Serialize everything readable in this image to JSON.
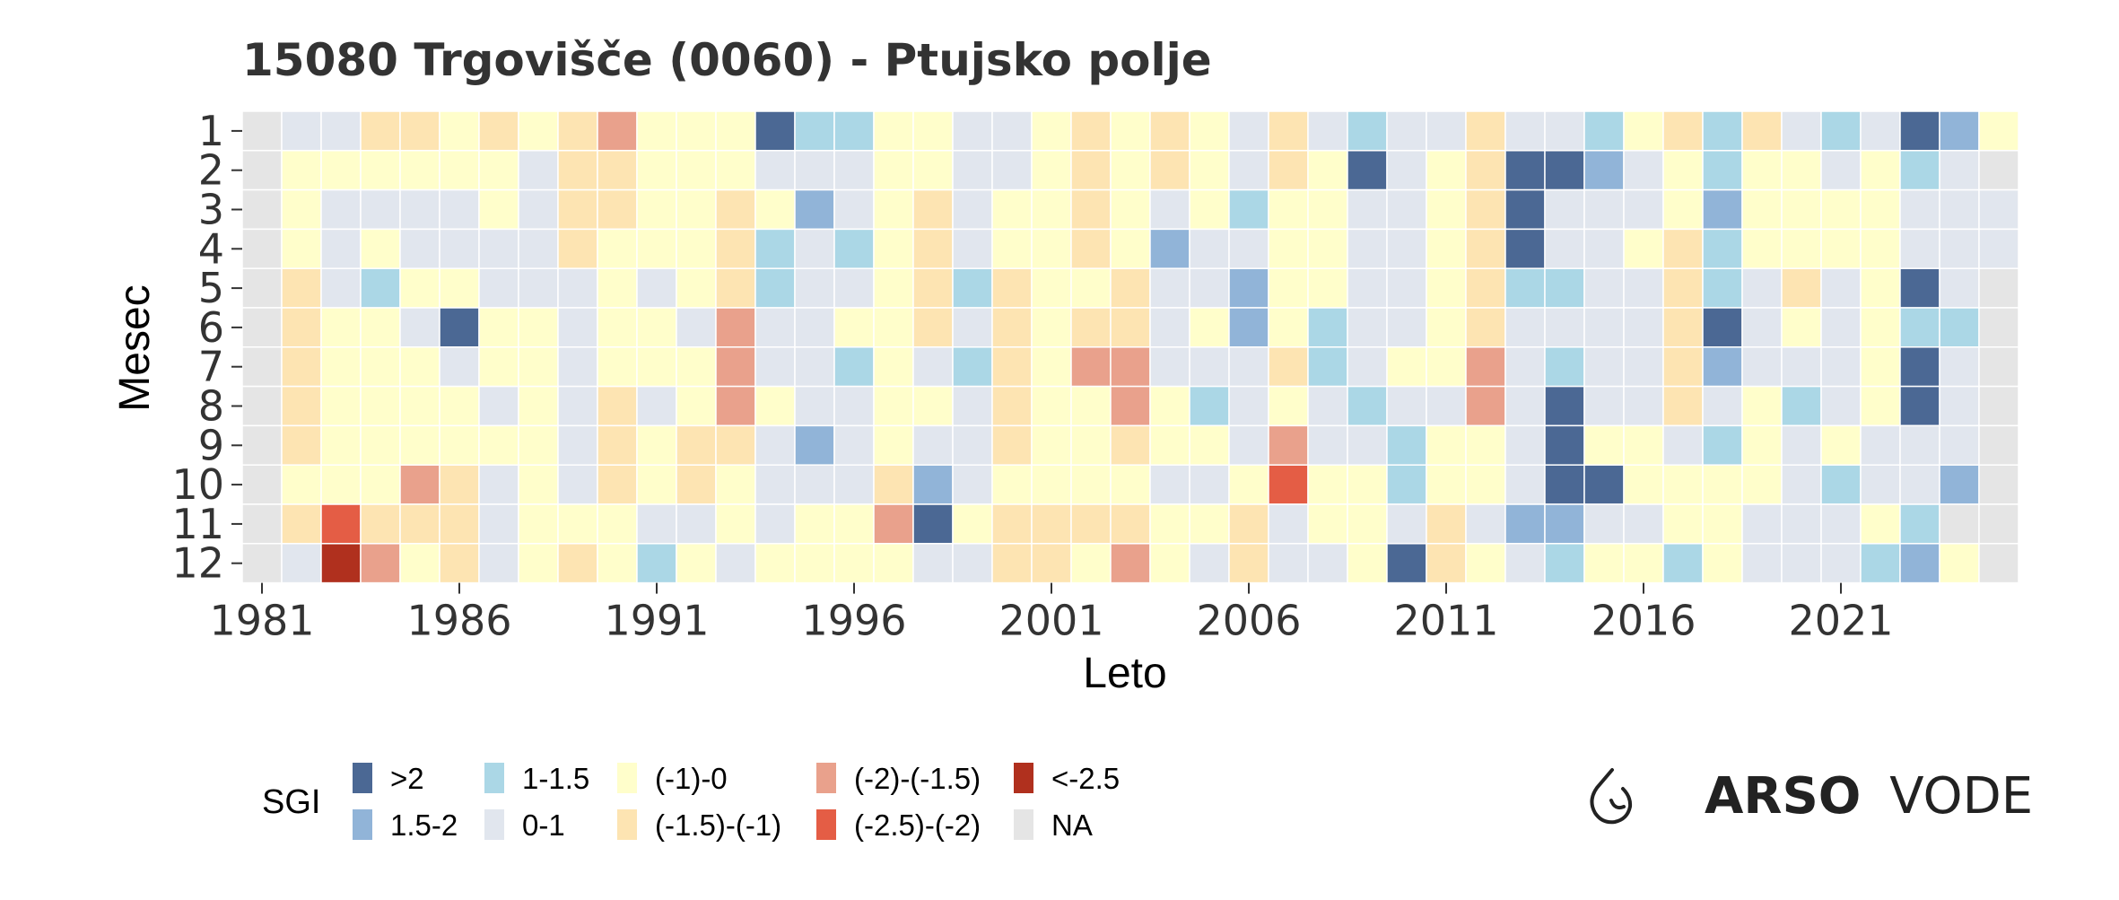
{
  "chart_data": {
    "type": "heatmap",
    "title": "15080 Trgovišče (0060) - Ptujsko polje",
    "xlabel": "Leto",
    "ylabel": "Mesec",
    "x_range": [
      1981,
      2025
    ],
    "y_categories": [
      "1",
      "2",
      "3",
      "4",
      "5",
      "6",
      "7",
      "8",
      "9",
      "10",
      "11",
      "12"
    ],
    "x_ticks": [
      "1981",
      "1986",
      "1991",
      "1996",
      "2001",
      "2006",
      "2011",
      "2016",
      "2021"
    ],
    "legend": {
      "title": "SGI",
      "entries": [
        {
          "code": "p2",
          "label": ">2",
          "color": "#4B6894"
        },
        {
          "code": "p15",
          "label": "1.5-2",
          "color": "#91B4D8"
        },
        {
          "code": "p1",
          "label": "1-1.5",
          "color": "#ABD7E6"
        },
        {
          "code": "z",
          "label": "0-1",
          "color": "#E1E6EE"
        },
        {
          "code": "m0",
          "label": "(-1)-0",
          "color": "#FFFECB"
        },
        {
          "code": "m1",
          "label": "(-1.5)-(-1)",
          "color": "#FDE4B2"
        },
        {
          "code": "m15",
          "label": "(-2)-(-1.5)",
          "color": "#E9A18C"
        },
        {
          "code": "m2",
          "label": "(-2.5)-(-2)",
          "color": "#E45D45"
        },
        {
          "code": "m25",
          "label": "<-2.5",
          "color": "#B0301E"
        },
        {
          "code": "na",
          "label": "NA",
          "color": "#E5E5E5"
        }
      ]
    },
    "values": [
      [
        "na",
        "z",
        "z",
        "m1",
        "m1",
        "m0",
        "m1",
        "m0",
        "m1",
        "m15",
        "m0",
        "m0",
        "m0",
        "p2",
        "p1",
        "p1",
        "m0",
        "m0",
        "z",
        "z",
        "m0",
        "m1",
        "m0",
        "m1",
        "m0",
        "z",
        "m1",
        "z",
        "p1",
        "z",
        "z",
        "m1",
        "z",
        "z",
        "p1",
        "m0",
        "m1",
        "p1",
        "m1",
        "z",
        "p1",
        "z",
        "p2",
        "p15",
        "m0"
      ],
      [
        "na",
        "m0",
        "m0",
        "m0",
        "m0",
        "m0",
        "m0",
        "z",
        "m1",
        "m1",
        "m0",
        "m0",
        "m0",
        "z",
        "z",
        "z",
        "m0",
        "m0",
        "z",
        "z",
        "m0",
        "m1",
        "m0",
        "m1",
        "m0",
        "z",
        "m1",
        "m0",
        "p2",
        "z",
        "m0",
        "m1",
        "p2",
        "p2",
        "p15",
        "z",
        "m0",
        "p1",
        "m0",
        "m0",
        "z",
        "m0",
        "p1",
        "z",
        "na"
      ],
      [
        "na",
        "m0",
        "z",
        "z",
        "z",
        "z",
        "m0",
        "z",
        "m1",
        "m1",
        "m0",
        "m0",
        "m1",
        "m0",
        "p15",
        "z",
        "m0",
        "m1",
        "z",
        "m0",
        "m0",
        "m1",
        "m0",
        "z",
        "m0",
        "p1",
        "m0",
        "m0",
        "z",
        "z",
        "m0",
        "m1",
        "p2",
        "z",
        "z",
        "z",
        "m0",
        "p15",
        "m0",
        "m0",
        "m0",
        "m0",
        "z",
        "z",
        "z"
      ],
      [
        "na",
        "m0",
        "z",
        "m0",
        "z",
        "z",
        "z",
        "z",
        "m1",
        "m0",
        "m0",
        "m0",
        "m1",
        "p1",
        "z",
        "p1",
        "m0",
        "m1",
        "z",
        "m0",
        "m0",
        "m1",
        "m0",
        "p15",
        "z",
        "z",
        "m0",
        "m0",
        "z",
        "z",
        "m0",
        "m1",
        "p2",
        "z",
        "z",
        "m0",
        "m1",
        "p1",
        "m0",
        "m0",
        "m0",
        "m0",
        "z",
        "z",
        "z"
      ],
      [
        "na",
        "m1",
        "z",
        "p1",
        "m0",
        "m0",
        "z",
        "z",
        "z",
        "m0",
        "z",
        "m0",
        "m1",
        "p1",
        "z",
        "z",
        "m0",
        "m1",
        "p1",
        "m1",
        "m0",
        "m0",
        "m1",
        "z",
        "z",
        "p15",
        "m0",
        "m0",
        "z",
        "z",
        "m0",
        "m1",
        "p1",
        "p1",
        "z",
        "z",
        "m1",
        "p1",
        "z",
        "m1",
        "z",
        "m0",
        "p2",
        "z",
        "na"
      ],
      [
        "na",
        "m1",
        "m0",
        "m0",
        "z",
        "p2",
        "m0",
        "m0",
        "z",
        "m0",
        "m0",
        "z",
        "m15",
        "z",
        "z",
        "m0",
        "m0",
        "m1",
        "z",
        "m1",
        "m0",
        "m1",
        "m1",
        "z",
        "m0",
        "p15",
        "m0",
        "p1",
        "z",
        "z",
        "m0",
        "m1",
        "z",
        "z",
        "z",
        "z",
        "m1",
        "p2",
        "z",
        "m0",
        "z",
        "m0",
        "p1",
        "p1",
        "na"
      ],
      [
        "na",
        "m1",
        "m0",
        "m0",
        "m0",
        "z",
        "m0",
        "m0",
        "z",
        "m0",
        "m0",
        "m0",
        "m15",
        "z",
        "z",
        "p1",
        "m0",
        "z",
        "p1",
        "m1",
        "m0",
        "m15",
        "m15",
        "z",
        "z",
        "z",
        "m1",
        "p1",
        "z",
        "m0",
        "m0",
        "m15",
        "z",
        "p1",
        "z",
        "z",
        "m1",
        "p15",
        "z",
        "z",
        "z",
        "m0",
        "p2",
        "z",
        "na"
      ],
      [
        "na",
        "m1",
        "m0",
        "m0",
        "m0",
        "m0",
        "z",
        "m0",
        "z",
        "m1",
        "z",
        "m0",
        "m15",
        "m0",
        "z",
        "z",
        "m0",
        "m0",
        "z",
        "m1",
        "m0",
        "m0",
        "m15",
        "m0",
        "p1",
        "z",
        "m0",
        "z",
        "p1",
        "z",
        "z",
        "m15",
        "z",
        "p2",
        "z",
        "z",
        "m1",
        "z",
        "m0",
        "p1",
        "z",
        "m0",
        "p2",
        "z",
        "na"
      ],
      [
        "na",
        "m1",
        "m0",
        "m0",
        "m0",
        "m0",
        "m0",
        "m0",
        "z",
        "m1",
        "m0",
        "m1",
        "m1",
        "z",
        "p15",
        "z",
        "m0",
        "z",
        "z",
        "m1",
        "m0",
        "m0",
        "m1",
        "m0",
        "m0",
        "z",
        "m15",
        "z",
        "z",
        "p1",
        "m0",
        "m0",
        "z",
        "p2",
        "m0",
        "m0",
        "z",
        "p1",
        "m0",
        "z",
        "m0",
        "z",
        "z",
        "z",
        "na"
      ],
      [
        "na",
        "m0",
        "m0",
        "m0",
        "m15",
        "m1",
        "z",
        "m0",
        "z",
        "m1",
        "m0",
        "m1",
        "m0",
        "z",
        "z",
        "z",
        "m1",
        "p15",
        "z",
        "m0",
        "m0",
        "m0",
        "m0",
        "z",
        "z",
        "m0",
        "m2",
        "m0",
        "m0",
        "p1",
        "m0",
        "m0",
        "z",
        "p2",
        "p2",
        "m0",
        "m0",
        "m0",
        "m0",
        "z",
        "p1",
        "z",
        "z",
        "p15",
        "na"
      ],
      [
        "na",
        "m1",
        "m2",
        "m1",
        "m1",
        "m1",
        "z",
        "m0",
        "m0",
        "m0",
        "z",
        "z",
        "m0",
        "z",
        "m0",
        "m0",
        "m15",
        "p2",
        "m0",
        "m1",
        "m1",
        "m1",
        "m1",
        "m0",
        "m0",
        "m1",
        "z",
        "m0",
        "m0",
        "z",
        "m1",
        "z",
        "p15",
        "p15",
        "z",
        "z",
        "m0",
        "m0",
        "z",
        "z",
        "z",
        "m0",
        "p1",
        "na",
        "na"
      ],
      [
        "na",
        "z",
        "m25",
        "m15",
        "m0",
        "m1",
        "z",
        "m0",
        "m1",
        "m0",
        "p1",
        "m0",
        "z",
        "m0",
        "m0",
        "m0",
        "m0",
        "z",
        "z",
        "m1",
        "m1",
        "m0",
        "m15",
        "m0",
        "z",
        "m1",
        "z",
        "z",
        "m0",
        "p2",
        "m1",
        "m0",
        "z",
        "p1",
        "m0",
        "m0",
        "p1",
        "m0",
        "z",
        "z",
        "z",
        "p1",
        "p15",
        "m0",
        "na"
      ]
    ]
  },
  "logo": {
    "brand_bold": "ARSO",
    "brand_light": "VODE",
    "icon": "water-drop-icon"
  }
}
